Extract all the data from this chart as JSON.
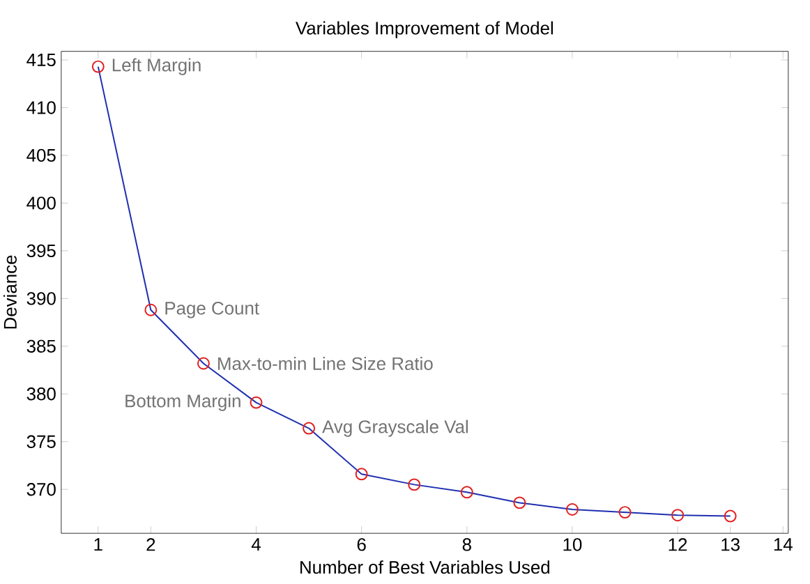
{
  "chart_data": {
    "type": "line",
    "title": "Variables Improvement of Model",
    "xlabel": "Number of Best Variables Used",
    "ylabel": "Deviance",
    "x": [
      1,
      2,
      3,
      4,
      5,
      6,
      7,
      8,
      9,
      10,
      11,
      12,
      13
    ],
    "series": [
      {
        "color": "#1f2fb0",
        "marker": "none",
        "values": [
          414.3,
          388.8,
          383.2,
          379.1,
          376.4,
          371.6,
          370.5,
          369.7,
          368.6,
          367.9,
          367.6,
          367.3,
          367.2
        ]
      },
      {
        "type": "scatter",
        "color": "#e02020",
        "marker": "circle",
        "values": [
          414.3,
          388.8,
          383.2,
          379.1,
          376.4,
          371.6,
          370.5,
          369.7,
          368.6,
          367.9,
          367.6,
          367.3,
          367.2
        ]
      }
    ],
    "xlim": [
      0.3,
      14.1
    ],
    "ylim": [
      365.4,
      415.9
    ],
    "xticks": [
      1,
      2,
      4,
      6,
      8,
      10,
      12,
      13,
      14
    ],
    "yticks": [
      370,
      375,
      380,
      385,
      390,
      395,
      400,
      405,
      410,
      415
    ],
    "grid": false,
    "annotations": [
      {
        "text": "Left Margin",
        "x": 1,
        "y": 414.3
      },
      {
        "text": "Page Count",
        "x": 2,
        "y": 388.8
      },
      {
        "text": "Max-to-min Line Size Ratio",
        "x": 3,
        "y": 383.2
      },
      {
        "text": "Bottom Margin",
        "x": 4,
        "y": 379.1
      },
      {
        "text": "Avg Grayscale Val",
        "x": 5,
        "y": 376.4
      }
    ]
  }
}
